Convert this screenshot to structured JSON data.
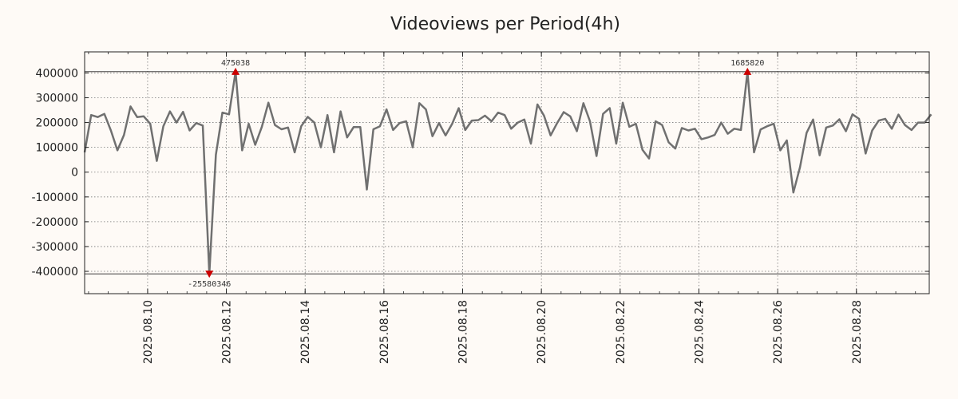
{
  "chart_data": {
    "type": "line",
    "title": "Videoviews per Period(4h)",
    "xlabel": "",
    "ylabel": "",
    "ylim": [
      -490000,
      485000
    ],
    "clip_limits": [
      405000,
      -410000
    ],
    "grid": true,
    "line_color": "#707070",
    "marker_color": "#cc0000",
    "yticks": [
      400000,
      300000,
      200000,
      100000,
      0,
      -100000,
      -200000,
      -300000,
      -400000
    ],
    "ytick_labels": [
      "400000",
      "300000",
      "200000",
      "100000",
      "0",
      "-100000",
      "-200000",
      "-300000",
      "-400000"
    ],
    "xticks": [
      2,
      4,
      6,
      8,
      10,
      12,
      14,
      16,
      18,
      20
    ],
    "xtick_labels": [
      "2025.08.10",
      "2025.08.12",
      "2025.08.14",
      "2025.08.16",
      "2025.08.18",
      "2025.08.20",
      "2025.08.22",
      "2025.08.24",
      "2025.08.26",
      "2025.08.28"
    ],
    "x_start_day": 8.4,
    "x_end_day": 29.85,
    "points_per_day": 6,
    "values": [
      80000,
      230000,
      222000,
      235000,
      168000,
      88000,
      150000,
      265000,
      222000,
      225000,
      195000,
      45000,
      185000,
      245000,
      200000,
      243000,
      168000,
      198000,
      188000,
      -410000,
      70000,
      240000,
      233000,
      405000,
      88000,
      195000,
      110000,
      183000,
      280000,
      190000,
      173000,
      180000,
      80000,
      185000,
      223000,
      200000,
      100000,
      230000,
      80000,
      245000,
      140000,
      182000,
      182000,
      -70000,
      173000,
      185000,
      253000,
      170000,
      198000,
      205000,
      100000,
      278000,
      253000,
      145000,
      198000,
      148000,
      195000,
      258000,
      170000,
      208000,
      210000,
      228000,
      205000,
      240000,
      230000,
      175000,
      200000,
      212000,
      115000,
      273000,
      228000,
      148000,
      198000,
      242000,
      225000,
      165000,
      278000,
      205000,
      65000,
      235000,
      258000,
      115000,
      280000,
      183000,
      195000,
      90000,
      55000,
      205000,
      190000,
      120000,
      95000,
      178000,
      168000,
      175000,
      133000,
      140000,
      150000,
      200000,
      155000,
      175000,
      170000,
      405000,
      80000,
      172000,
      185000,
      195000,
      88000,
      128000,
      -82000,
      20000,
      158000,
      212000,
      68000,
      180000,
      188000,
      213000,
      165000,
      233000,
      215000,
      75000,
      168000,
      208000,
      215000,
      175000,
      232000,
      190000,
      170000,
      200000,
      200000,
      233000
    ],
    "annotations": [
      {
        "label": "475038",
        "index": 23,
        "value": 405000,
        "direction": "up"
      },
      {
        "label": "1685820",
        "index": 101,
        "value": 405000,
        "direction": "up"
      },
      {
        "label": "-25580346",
        "index": 19,
        "value": -410000,
        "direction": "down"
      }
    ]
  }
}
